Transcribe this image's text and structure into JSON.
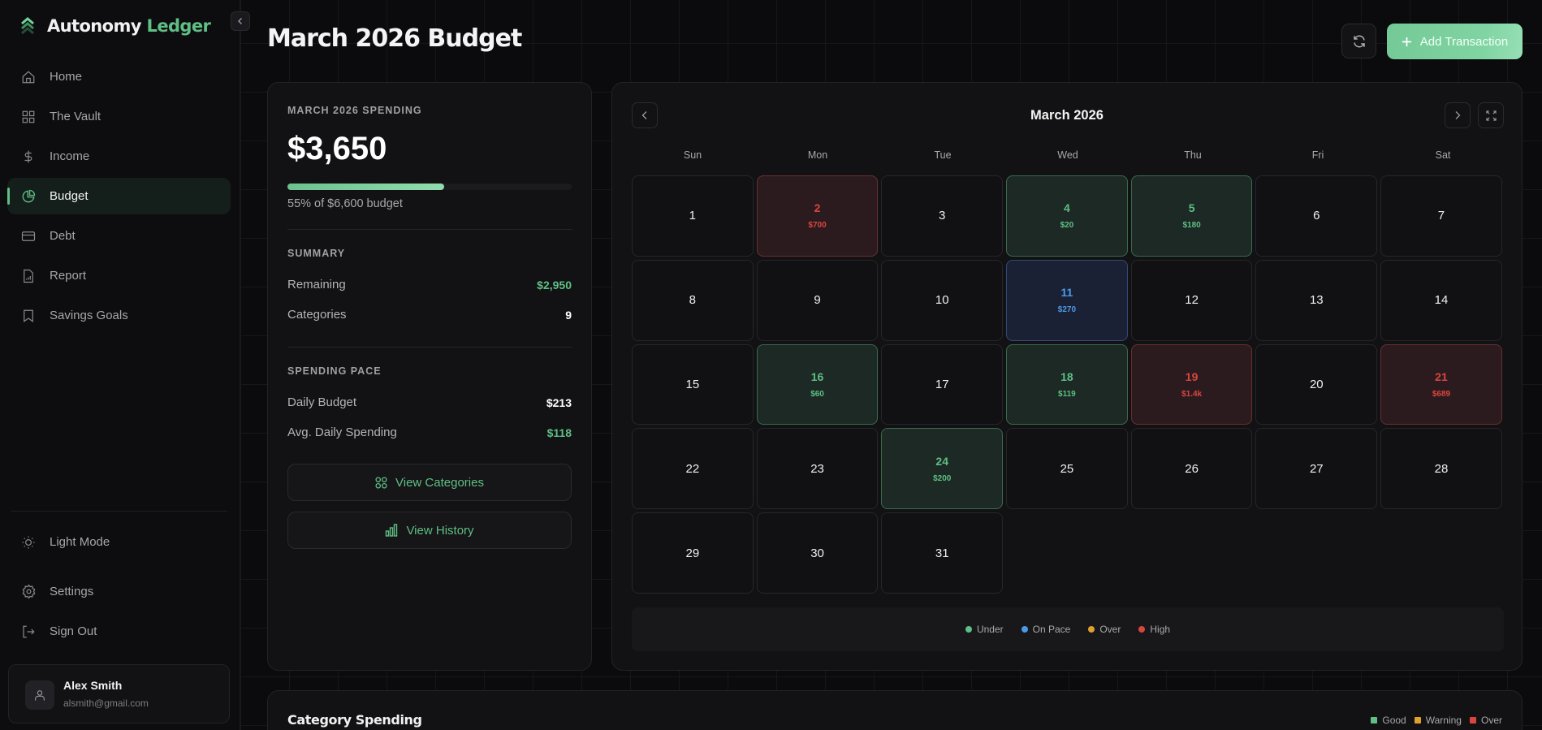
{
  "app": {
    "brand_primary": "Autonomy",
    "brand_accent": "Ledger",
    "accent_color": "#5fbf85"
  },
  "sidebar": {
    "items": [
      {
        "label": "Home",
        "icon": "home-icon",
        "active": false
      },
      {
        "label": "The Vault",
        "icon": "grid-icon",
        "active": false
      },
      {
        "label": "Income",
        "icon": "dollar-icon",
        "active": false
      },
      {
        "label": "Budget",
        "icon": "pie-chart-icon",
        "active": true
      },
      {
        "label": "Debt",
        "icon": "credit-card-icon",
        "active": false
      },
      {
        "label": "Report",
        "icon": "report-icon",
        "active": false
      },
      {
        "label": "Savings Goals",
        "icon": "bookmark-icon",
        "active": false
      }
    ],
    "bottom_items": [
      {
        "label": "Light Mode",
        "icon": "sun-icon"
      },
      {
        "label": "Settings",
        "icon": "gear-icon"
      },
      {
        "label": "Sign Out",
        "icon": "sign-out-icon"
      }
    ],
    "user": {
      "name": "Alex Smith",
      "email": "alsmith@gmail.com"
    }
  },
  "header": {
    "title": "March 2026 Budget",
    "add_button_label": "Add Transaction"
  },
  "spending": {
    "eyebrow": "MARCH 2026 SPENDING",
    "amount": "$3,650",
    "progress_pct": 55,
    "progress_text": "55% of $6,600 budget",
    "summary_title": "SUMMARY",
    "summary": [
      {
        "label": "Remaining",
        "value": "$2,950",
        "tone": "green"
      },
      {
        "label": "Categories",
        "value": "9",
        "tone": "white"
      }
    ],
    "pace_title": "SPENDING PACE",
    "pace": [
      {
        "label": "Daily Budget",
        "value": "$213",
        "tone": "white"
      },
      {
        "label": "Avg. Daily Spending",
        "value": "$118",
        "tone": "green"
      }
    ],
    "view_categories_label": "View Categories",
    "view_history_label": "View History"
  },
  "calendar": {
    "title": "March 2026",
    "weekdays": [
      "Sun",
      "Mon",
      "Tue",
      "Wed",
      "Thu",
      "Fri",
      "Sat"
    ],
    "days": [
      {
        "day": "1"
      },
      {
        "day": "2",
        "amount": "$700",
        "status": "high"
      },
      {
        "day": "3"
      },
      {
        "day": "4",
        "amount": "$20",
        "status": "under"
      },
      {
        "day": "5",
        "amount": "$180",
        "status": "under"
      },
      {
        "day": "6"
      },
      {
        "day": "7"
      },
      {
        "day": "8"
      },
      {
        "day": "9"
      },
      {
        "day": "10"
      },
      {
        "day": "11",
        "amount": "$270",
        "status": "onpace"
      },
      {
        "day": "12"
      },
      {
        "day": "13"
      },
      {
        "day": "14"
      },
      {
        "day": "15"
      },
      {
        "day": "16",
        "amount": "$60",
        "status": "under"
      },
      {
        "day": "17"
      },
      {
        "day": "18",
        "amount": "$119",
        "status": "under"
      },
      {
        "day": "19",
        "amount": "$1.4k",
        "status": "high"
      },
      {
        "day": "20"
      },
      {
        "day": "21",
        "amount": "$689",
        "status": "high"
      },
      {
        "day": "22"
      },
      {
        "day": "23"
      },
      {
        "day": "24",
        "amount": "$200",
        "status": "under"
      },
      {
        "day": "25"
      },
      {
        "day": "26"
      },
      {
        "day": "27"
      },
      {
        "day": "28"
      },
      {
        "day": "29"
      },
      {
        "day": "30"
      },
      {
        "day": "31"
      }
    ],
    "legend": [
      {
        "label": "Under",
        "color": "#5fbf85"
      },
      {
        "label": "On Pace",
        "color": "#4c9ae6"
      },
      {
        "label": "Over",
        "color": "#e0a030"
      },
      {
        "label": "High",
        "color": "#d9453f"
      }
    ]
  },
  "category_spending": {
    "title": "Category Spending",
    "legend": [
      {
        "label": "Good",
        "color": "#5fbf85"
      },
      {
        "label": "Warning",
        "color": "#e0a030"
      },
      {
        "label": "Over",
        "color": "#d9453f"
      }
    ]
  }
}
